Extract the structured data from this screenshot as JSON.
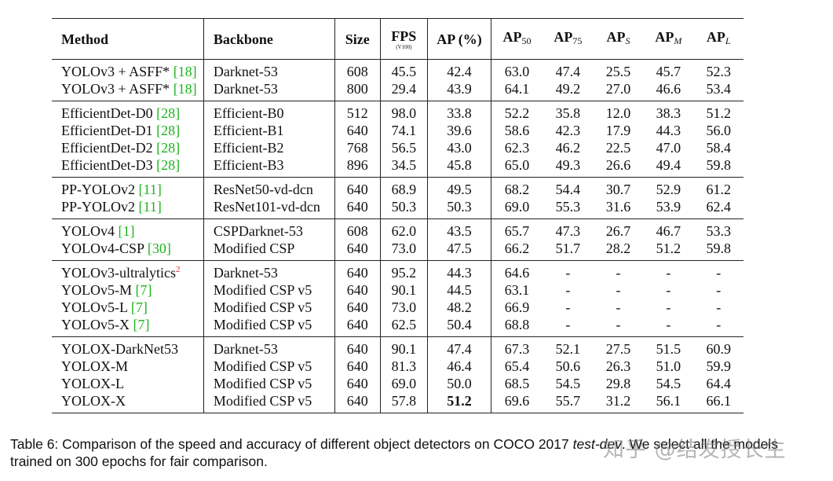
{
  "header": {
    "method": "Method",
    "backbone": "Backbone",
    "size": "Size",
    "fps": "FPS",
    "fps_sub": "(V100)",
    "ap": "AP (%)",
    "ap50": {
      "base": "AP",
      "sub": "50"
    },
    "ap75": {
      "base": "AP",
      "sub": "75"
    },
    "aps": {
      "base": "AP",
      "sub": "S"
    },
    "apm": {
      "base": "AP",
      "sub": "M"
    },
    "apl": {
      "base": "AP",
      "sub": "L"
    }
  },
  "groups": [
    [
      {
        "method": "YOLOv3 + ASFF* ",
        "cite": "[18]",
        "sup": "",
        "backbone": "Darknet-53",
        "size": "608",
        "fps": "45.5",
        "ap": "42.4",
        "ap50": "63.0",
        "ap75": "47.4",
        "aps": "25.5",
        "apm": "45.7",
        "apl": "52.3"
      },
      {
        "method": "YOLOv3 + ASFF* ",
        "cite": "[18]",
        "sup": "",
        "backbone": "Darknet-53",
        "size": "800",
        "fps": "29.4",
        "ap": "43.9",
        "ap50": "64.1",
        "ap75": "49.2",
        "aps": "27.0",
        "apm": "46.6",
        "apl": "53.4"
      }
    ],
    [
      {
        "method": "EfficientDet-D0 ",
        "cite": "[28]",
        "sup": "",
        "backbone": "Efficient-B0",
        "size": "512",
        "fps": "98.0",
        "ap": "33.8",
        "ap50": "52.2",
        "ap75": "35.8",
        "aps": "12.0",
        "apm": "38.3",
        "apl": "51.2"
      },
      {
        "method": "EfficientDet-D1 ",
        "cite": "[28]",
        "sup": "",
        "backbone": "Efficient-B1",
        "size": "640",
        "fps": "74.1",
        "ap": "39.6",
        "ap50": "58.6",
        "ap75": "42.3",
        "aps": "17.9",
        "apm": "44.3",
        "apl": "56.0"
      },
      {
        "method": "EfficientDet-D2 ",
        "cite": "[28]",
        "sup": "",
        "backbone": "Efficient-B2",
        "size": "768",
        "fps": "56.5",
        "ap": "43.0",
        "ap50": "62.3",
        "ap75": "46.2",
        "aps": "22.5",
        "apm": "47.0",
        "apl": "58.4"
      },
      {
        "method": "EfficientDet-D3 ",
        "cite": "[28]",
        "sup": "",
        "backbone": "Efficient-B3",
        "size": "896",
        "fps": "34.5",
        "ap": "45.8",
        "ap50": "65.0",
        "ap75": "49.3",
        "aps": "26.6",
        "apm": "49.4",
        "apl": "59.8"
      }
    ],
    [
      {
        "method": "PP-YOLOv2 ",
        "cite": "[11]",
        "sup": "",
        "backbone": "ResNet50-vd-dcn",
        "size": "640",
        "fps": "68.9",
        "ap": "49.5",
        "ap50": "68.2",
        "ap75": "54.4",
        "aps": "30.7",
        "apm": "52.9",
        "apl": "61.2"
      },
      {
        "method": "PP-YOLOv2 ",
        "cite": "[11]",
        "sup": "",
        "backbone": "ResNet101-vd-dcn",
        "size": "640",
        "fps": "50.3",
        "ap": "50.3",
        "ap50": "69.0",
        "ap75": "55.3",
        "aps": "31.6",
        "apm": "53.9",
        "apl": "62.4"
      }
    ],
    [
      {
        "method": "YOLOv4 ",
        "cite": "[1]",
        "sup": "",
        "backbone": "CSPDarknet-53",
        "size": "608",
        "fps": "62.0",
        "ap": "43.5",
        "ap50": "65.7",
        "ap75": "47.3",
        "aps": "26.7",
        "apm": "46.7",
        "apl": "53.3"
      },
      {
        "method": "YOLOv4-CSP ",
        "cite": "[30]",
        "sup": "",
        "backbone": "Modified CSP",
        "size": "640",
        "fps": "73.0",
        "ap": "47.5",
        "ap50": "66.2",
        "ap75": "51.7",
        "aps": "28.2",
        "apm": "51.2",
        "apl": "59.8"
      }
    ],
    [
      {
        "method": "YOLOv3-ultralytics",
        "cite": "",
        "sup": "2",
        "backbone": "Darknet-53",
        "size": "640",
        "fps": "95.2",
        "ap": "44.3",
        "ap50": "64.6",
        "ap75": "-",
        "aps": "-",
        "apm": "-",
        "apl": "-"
      },
      {
        "method": "YOLOv5-M ",
        "cite": "[7]",
        "sup": "",
        "backbone": "Modified CSP v5",
        "size": "640",
        "fps": "90.1",
        "ap": "44.5",
        "ap50": "63.1",
        "ap75": "-",
        "aps": "-",
        "apm": "-",
        "apl": "-"
      },
      {
        "method": "YOLOv5-L ",
        "cite": "[7]",
        "sup": "",
        "backbone": "Modified CSP v5",
        "size": "640",
        "fps": "73.0",
        "ap": "48.2",
        "ap50": "66.9",
        "ap75": "-",
        "aps": "-",
        "apm": "-",
        "apl": "-"
      },
      {
        "method": "YOLOv5-X ",
        "cite": "[7]",
        "sup": "",
        "backbone": "Modified CSP v5",
        "size": "640",
        "fps": "62.5",
        "ap": "50.4",
        "ap50": "68.8",
        "ap75": "-",
        "aps": "-",
        "apm": "-",
        "apl": "-"
      }
    ],
    [
      {
        "method": "YOLOX-DarkNet53",
        "cite": "",
        "sup": "",
        "backbone": "Darknet-53",
        "size": "640",
        "fps": "90.1",
        "ap": "47.4",
        "ap50": "67.3",
        "ap75": "52.1",
        "aps": "27.5",
        "apm": "51.5",
        "apl": "60.9"
      },
      {
        "method": "YOLOX-M",
        "cite": "",
        "sup": "",
        "backbone": "Modified CSP v5",
        "size": "640",
        "fps": "81.3",
        "ap": "46.4",
        "ap50": "65.4",
        "ap75": "50.6",
        "aps": "26.3",
        "apm": "51.0",
        "apl": "59.9"
      },
      {
        "method": "YOLOX-L",
        "cite": "",
        "sup": "",
        "backbone": "Modified CSP v5",
        "size": "640",
        "fps": "69.0",
        "ap": "50.0",
        "ap50": "68.5",
        "ap75": "54.5",
        "aps": "29.8",
        "apm": "54.5",
        "apl": "64.4"
      },
      {
        "method": "YOLOX-X",
        "cite": "",
        "sup": "",
        "backbone": "Modified CSP v5",
        "size": "640",
        "fps": "57.8",
        "ap": "51.2",
        "ap_bold": true,
        "ap50": "69.6",
        "ap75": "55.7",
        "aps": "31.2",
        "apm": "56.1",
        "apl": "66.1"
      }
    ]
  ],
  "caption": {
    "prefix": "Table 6: Comparison of the speed and accuracy of different object detectors on COCO 2017 ",
    "italic": "test-dev",
    "suffix": ". We select all the models trained on 300 epochs for fair comparison."
  },
  "watermark": "知乎 @结发授长生",
  "colors": {
    "citation": "#1db31d",
    "footnote": "#e0262b",
    "rule": "#222222"
  }
}
